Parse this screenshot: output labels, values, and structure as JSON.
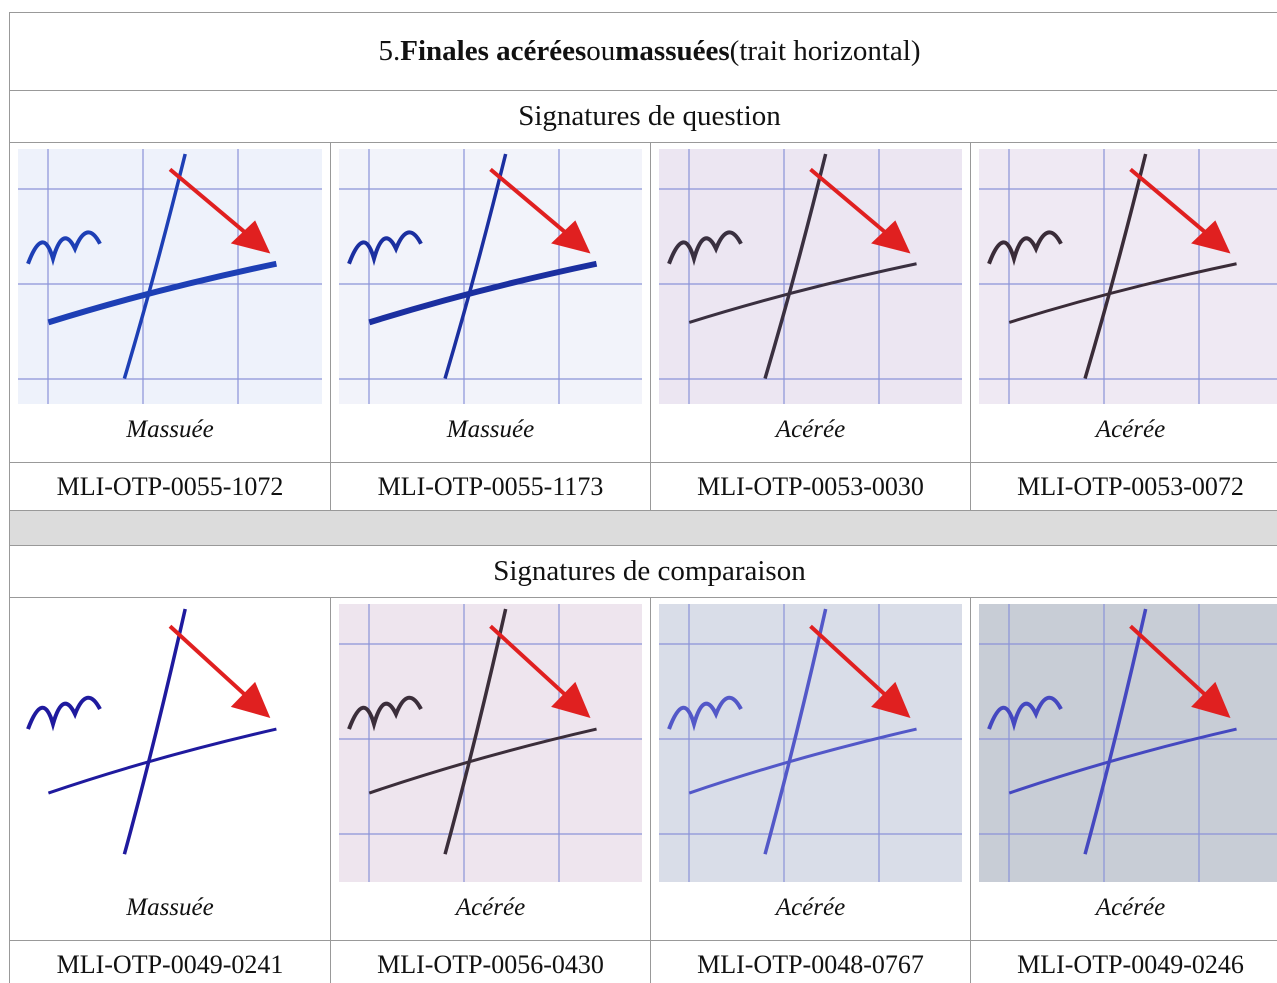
{
  "title_parts": [
    {
      "text": "5. ",
      "bold": false
    },
    {
      "text": "Finales acérées",
      "bold": true
    },
    {
      "text": " ou ",
      "bold": false
    },
    {
      "text": "massuées",
      "bold": true
    },
    {
      "text": " (trait horizontal)",
      "bold": false
    }
  ],
  "sections": [
    {
      "heading": "Signatures de question",
      "items": [
        {
          "caption": "Massuée",
          "id": "MLI-OTP-0055-1072"
        },
        {
          "caption": "Massuée",
          "id": "MLI-OTP-0055-1173"
        },
        {
          "caption": "Acérée",
          "id": "MLI-OTP-0053-0030"
        },
        {
          "caption": "Acérée",
          "id": "MLI-OTP-0053-0072"
        }
      ]
    },
    {
      "heading": "Signatures de comparaison",
      "items": [
        {
          "caption": "Massuée",
          "id": "MLI-OTP-0049-0241"
        },
        {
          "caption": "Acérée",
          "id": "MLI-OTP-0056-0430"
        },
        {
          "caption": "Acérée",
          "id": "MLI-OTP-0048-0767"
        },
        {
          "caption": "Acérée",
          "id": "MLI-OTP-0049-0246"
        }
      ]
    }
  ]
}
